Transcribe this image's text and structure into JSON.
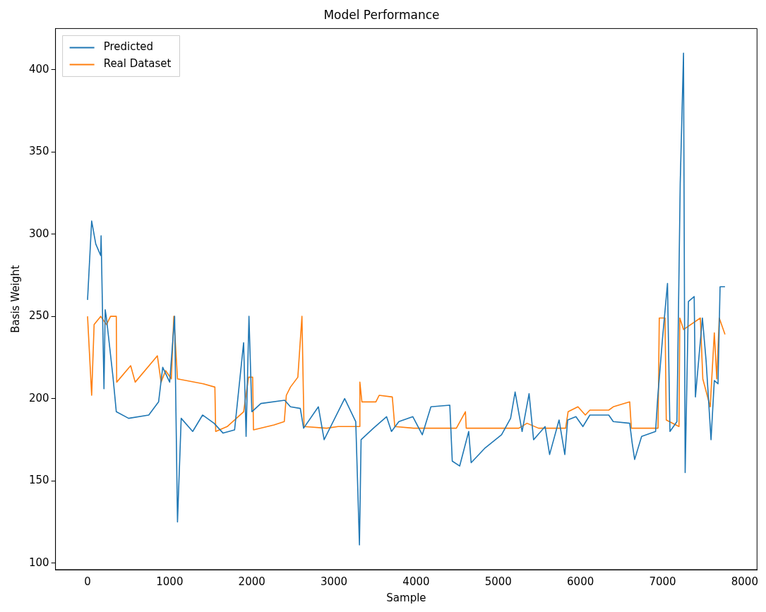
{
  "chart_data": {
    "type": "line",
    "title": "Model Performance",
    "xlabel": "Sample",
    "ylabel": "Basis Weight",
    "xlim": [
      -390,
      8150
    ],
    "ylim": [
      96,
      425
    ],
    "xticks": [
      0,
      1000,
      2000,
      3000,
      4000,
      5000,
      6000,
      7000,
      8000
    ],
    "yticks": [
      100,
      150,
      200,
      250,
      300,
      350,
      400
    ],
    "grid": false,
    "legend": "top left",
    "marker": "none",
    "line_style": "solid",
    "series": [
      {
        "name": "Predicted",
        "color": "#1f77b4",
        "x": [
          0,
          50,
          100,
          160,
          165,
          200,
          215,
          230,
          310,
          350,
          500,
          745,
          865,
          915,
          1000,
          1060,
          1095,
          1140,
          1280,
          1400,
          1540,
          1650,
          1790,
          1900,
          1930,
          1965,
          2000,
          2110,
          2400,
          2470,
          2590,
          2630,
          2810,
          2880,
          3130,
          3265,
          3310,
          3330,
          3480,
          3640,
          3700,
          3790,
          3960,
          4075,
          4180,
          4410,
          4440,
          4530,
          4640,
          4670,
          4840,
          5040,
          5150,
          5205,
          5290,
          5375,
          5430,
          5570,
          5625,
          5740,
          5810,
          5845,
          5945,
          6030,
          6115,
          6345,
          6400,
          6600,
          6630,
          6660,
          6745,
          6915,
          6940,
          7000,
          7060,
          7090,
          7175,
          7215,
          7255,
          7275,
          7315,
          7385,
          7400,
          7485,
          7530,
          7590,
          7630,
          7675,
          7700,
          7760
        ],
        "values": [
          260,
          308,
          294,
          287,
          299,
          206,
          254,
          249,
          213,
          192,
          188,
          190,
          198,
          219,
          210,
          250,
          125,
          188,
          180,
          190,
          185,
          179,
          181,
          234,
          177,
          250,
          192,
          197,
          199,
          195,
          194,
          182,
          195,
          175,
          200,
          186,
          111,
          175,
          182,
          189,
          180,
          186,
          189,
          178,
          195,
          196,
          162,
          159,
          180,
          161,
          170,
          178,
          188,
          204,
          180,
          203,
          175,
          183,
          166,
          187,
          166,
          187,
          189,
          183,
          190,
          190,
          186,
          185,
          173,
          163,
          177,
          180,
          200,
          237,
          270,
          180,
          186,
          331,
          410,
          155,
          259,
          262,
          201,
          249,
          223,
          175,
          211,
          209,
          268,
          268
        ]
      },
      {
        "name": "Real Dataset",
        "color": "#ff7f0e",
        "x": [
          0,
          50,
          80,
          160,
          230,
          280,
          350,
          355,
          525,
          580,
          850,
          895,
          950,
          1020,
          1050,
          1095,
          1410,
          1550,
          1560,
          1700,
          1900,
          1960,
          2010,
          2020,
          2270,
          2395,
          2420,
          2470,
          2560,
          2610,
          2635,
          2910,
          3050,
          3310,
          3315,
          3340,
          3510,
          3550,
          3710,
          3740,
          3970,
          4200,
          4490,
          4600,
          4610,
          5050,
          5250,
          5350,
          5490,
          5820,
          5850,
          5970,
          6060,
          6115,
          6345,
          6400,
          6600,
          6620,
          6945,
          6960,
          7030,
          7045,
          7200,
          7210,
          7255,
          7460,
          7490,
          7580,
          7630,
          7660,
          7690,
          7760
        ],
        "values": [
          250,
          202,
          245,
          250,
          245,
          250,
          250,
          210,
          220,
          210,
          226,
          210,
          217,
          212,
          250,
          212,
          209,
          207,
          180,
          183,
          192,
          213,
          213,
          181,
          184,
          186,
          202,
          207,
          213,
          250,
          183,
          182,
          183,
          183,
          210,
          198,
          198,
          202,
          201,
          183,
          182,
          182,
          182,
          192,
          182,
          182,
          182,
          185,
          182,
          182,
          192,
          195,
          190,
          193,
          193,
          195,
          198,
          182,
          182,
          249,
          249,
          187,
          183,
          249,
          242,
          249,
          212,
          195,
          240,
          212,
          249,
          239
        ]
      }
    ]
  }
}
